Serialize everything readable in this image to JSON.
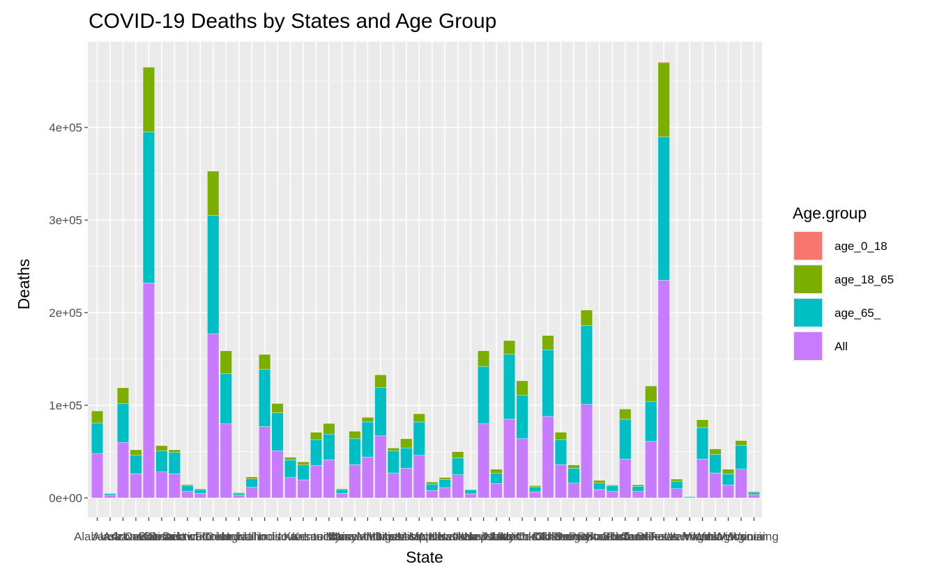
{
  "chart_data": {
    "type": "bar",
    "stacked": true,
    "title": "COVID-19 Deaths by States and Age Group",
    "xlabel": "State",
    "ylabel": "Deaths",
    "ylim": [
      0,
      490000
    ],
    "yticks": [
      0,
      100000,
      200000,
      300000,
      400000
    ],
    "ytick_labels": [
      "0e+00",
      "1e+05",
      "2e+05",
      "3e+05",
      "4e+05"
    ],
    "grid": true,
    "legend": {
      "title": "Age.group",
      "placement": "right"
    },
    "categories": [
      "Alabama",
      "Alaska",
      "Arizona",
      "Arkansas",
      "California",
      "Colorado",
      "Connecticut",
      "Delaware",
      "District of Columbia",
      "Florida",
      "Georgia",
      "Hawaii",
      "Idaho",
      "Illinois",
      "Indiana",
      "Iowa",
      "Kansas",
      "Kentucky",
      "Louisiana",
      "Maine",
      "Maryland",
      "Massachusetts",
      "Michigan",
      "Minnesota",
      "Mississippi",
      "Missouri",
      "Montana",
      "Nebraska",
      "Nevada",
      "New Hampshire",
      "New Jersey",
      "New Mexico",
      "New York",
      "North Carolina",
      "North Dakota",
      "Ohio",
      "Oklahoma",
      "Oregon",
      "Pennsylvania",
      "Puerto Rico",
      "Rhode Island",
      "South Carolina",
      "South Dakota",
      "Tennessee",
      "Texas",
      "Utah",
      "Vermont",
      "Virginia",
      "Washington",
      "West Virginia",
      "Wisconsin",
      "Wyoming"
    ],
    "series": [
      {
        "name": "age_0_18",
        "color": "#F8766D",
        "values": [
          100,
          10,
          150,
          80,
          500,
          80,
          50,
          20,
          15,
          300,
          200,
          10,
          20,
          200,
          150,
          50,
          50,
          100,
          150,
          10,
          100,
          100,
          200,
          50,
          100,
          150,
          20,
          30,
          80,
          10,
          150,
          50,
          300,
          200,
          20,
          300,
          150,
          60,
          300,
          50,
          20,
          150,
          20,
          200,
          700,
          40,
          5,
          150,
          100,
          50,
          100,
          10
        ]
      },
      {
        "name": "age_18_65",
        "color": "#7CAE00",
        "values": [
          13000,
          700,
          17000,
          6000,
          70000,
          5500,
          3000,
          1500,
          1000,
          48000,
          25000,
          800,
          2300,
          16000,
          10000,
          3000,
          3500,
          8000,
          11500,
          1100,
          8000,
          5000,
          14000,
          3000,
          10000,
          9000,
          2300,
          2200,
          7000,
          900,
          17000,
          4500,
          15000,
          15500,
          1400,
          15500,
          8000,
          3700,
          17000,
          3000,
          1200,
          11000,
          1800,
          17000,
          80000,
          2400,
          200,
          8500,
          6000,
          5000,
          5000,
          1000
        ]
      },
      {
        "name": "age_65_",
        "color": "#00BFC4",
        "values": [
          33000,
          2000,
          42000,
          20000,
          163000,
          23000,
          23000,
          6000,
          4000,
          128000,
          54000,
          2000,
          9000,
          62000,
          41000,
          19000,
          16000,
          28000,
          28000,
          4000,
          28000,
          38000,
          52000,
          24000,
          22000,
          36000,
          7000,
          9000,
          18000,
          4000,
          62000,
          11000,
          70000,
          47000,
          5500,
          72000,
          27000,
          16000,
          85000,
          7000,
          6000,
          43000,
          5500,
          43000,
          155000,
          8000,
          800,
          34000,
          20000,
          12000,
          26000,
          2500
        ]
      },
      {
        "name": "All",
        "color": "#C77CFF",
        "values": [
          48000,
          2500,
          60000,
          26000,
          232000,
          28000,
          26000,
          7000,
          5000,
          177000,
          80000,
          3000,
          11500,
          77000,
          51000,
          22000,
          19500,
          35000,
          41000,
          5000,
          36000,
          44000,
          67000,
          27000,
          32000,
          46000,
          8000,
          11000,
          25000,
          4500,
          80000,
          15500,
          85000,
          64000,
          6500,
          88000,
          36000,
          16000,
          101000,
          9000,
          7000,
          42000,
          7000,
          61000,
          235000,
          10000,
          1000,
          42000,
          27000,
          14000,
          31000,
          3500
        ]
      }
    ]
  }
}
